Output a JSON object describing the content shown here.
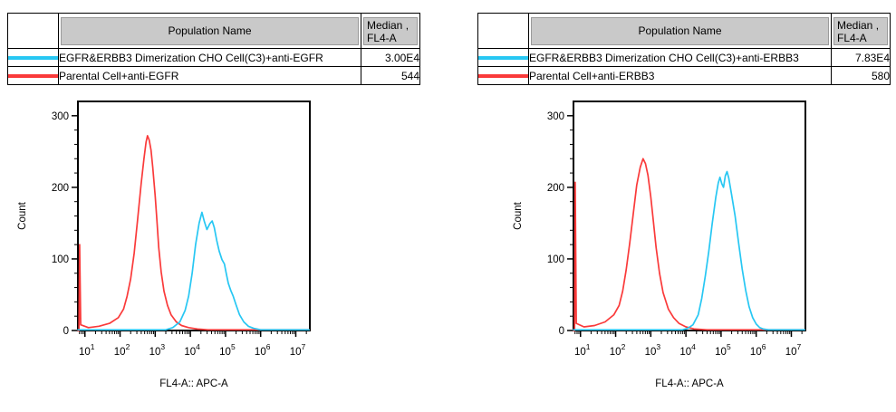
{
  "colors": {
    "cyan": "#27c7f3",
    "red": "#fa3a3a",
    "header_bg": "#c9c9c9",
    "header_border": "#9a9a9a",
    "axis": "#000000"
  },
  "panels": [
    {
      "table": {
        "headers": {
          "population": "Population Name",
          "median_line1": "Median ,",
          "median_line2": "FL4-A"
        },
        "rows": [
          {
            "swatch_color_key": "cyan",
            "name": "EGFR&ERBB3 Dimerization CHO Cell(C3)+anti-EGFR",
            "median": "3.00E4"
          },
          {
            "swatch_color_key": "red",
            "name": "Parental Cell+anti-EGFR",
            "median": "544"
          }
        ]
      }
    },
    {
      "table": {
        "headers": {
          "population": "Population Name",
          "median_line1": "Median ,",
          "median_line2": "FL4-A"
        },
        "rows": [
          {
            "swatch_color_key": "cyan",
            "name": "EGFR&ERBB3 Dimerization CHO Cell(C3)+anti-ERBB3",
            "median": "7.83E4"
          },
          {
            "swatch_color_key": "red",
            "name": "Parental Cell+anti-ERBB3",
            "median": "580"
          }
        ]
      }
    }
  ],
  "chart_data": [
    {
      "type": "line",
      "title": "",
      "xlabel": "FL4-A:: APC-A",
      "ylabel": "Count",
      "x_scale": "log10",
      "xlim_log10": [
        0.8,
        7.4
      ],
      "ylim": [
        0,
        320
      ],
      "yticks": [
        0,
        100,
        200,
        300
      ],
      "ytick_minor_step": 20,
      "xtick_base": "10",
      "xtick_exponents": [
        1,
        2,
        3,
        4,
        5,
        6,
        7
      ],
      "grid": false,
      "legend": "none",
      "series": [
        {
          "name": "Parental Cell+anti-EGFR",
          "color_key": "red",
          "median_fl4a": "544",
          "points_log10x_count": [
            [
              0.8,
              0
            ],
            [
              0.83,
              0
            ],
            [
              0.85,
              120
            ],
            [
              0.88,
              8
            ],
            [
              1.1,
              4
            ],
            [
              1.4,
              6
            ],
            [
              1.7,
              10
            ],
            [
              1.95,
              18
            ],
            [
              2.1,
              30
            ],
            [
              2.2,
              48
            ],
            [
              2.3,
              72
            ],
            [
              2.4,
              108
            ],
            [
              2.5,
              155
            ],
            [
              2.6,
              205
            ],
            [
              2.68,
              240
            ],
            [
              2.74,
              263
            ],
            [
              2.78,
              272
            ],
            [
              2.83,
              266
            ],
            [
              2.88,
              252
            ],
            [
              2.93,
              228
            ],
            [
              3.0,
              188
            ],
            [
              3.05,
              152
            ],
            [
              3.1,
              116
            ],
            [
              3.17,
              82
            ],
            [
              3.25,
              55
            ],
            [
              3.35,
              35
            ],
            [
              3.45,
              22
            ],
            [
              3.6,
              12
            ],
            [
              3.75,
              7
            ],
            [
              3.95,
              4
            ],
            [
              4.2,
              2
            ],
            [
              4.5,
              1
            ],
            [
              7.38,
              1
            ]
          ]
        },
        {
          "name": "EGFR&ERBB3 Dimerization CHO Cell(C3)+anti-EGFR",
          "color_key": "cyan",
          "median_fl4a": "3.00E4",
          "points_log10x_count": [
            [
              0.8,
              1
            ],
            [
              3.3,
              1
            ],
            [
              3.5,
              4
            ],
            [
              3.7,
              12
            ],
            [
              3.85,
              28
            ],
            [
              3.95,
              48
            ],
            [
              4.05,
              80
            ],
            [
              4.15,
              120
            ],
            [
              4.25,
              150
            ],
            [
              4.33,
              165
            ],
            [
              4.4,
              152
            ],
            [
              4.47,
              141
            ],
            [
              4.55,
              149
            ],
            [
              4.62,
              153
            ],
            [
              4.68,
              144
            ],
            [
              4.75,
              126
            ],
            [
              4.82,
              111
            ],
            [
              4.9,
              99
            ],
            [
              4.97,
              93
            ],
            [
              5.02,
              80
            ],
            [
              5.08,
              66
            ],
            [
              5.15,
              56
            ],
            [
              5.22,
              48
            ],
            [
              5.3,
              36
            ],
            [
              5.4,
              22
            ],
            [
              5.52,
              12
            ],
            [
              5.65,
              6
            ],
            [
              5.8,
              3
            ],
            [
              6.0,
              1
            ],
            [
              7.38,
              1
            ]
          ]
        }
      ]
    },
    {
      "type": "line",
      "title": "",
      "xlabel": "FL4-A:: APC-A",
      "ylabel": "Count",
      "x_scale": "log10",
      "xlim_log10": [
        0.8,
        7.4
      ],
      "ylim": [
        0,
        320
      ],
      "yticks": [
        0,
        100,
        200,
        300
      ],
      "ytick_minor_step": 20,
      "xtick_base": "10",
      "xtick_exponents": [
        1,
        2,
        3,
        4,
        5,
        6,
        7
      ],
      "grid": false,
      "legend": "none",
      "series": [
        {
          "name": "Parental Cell+anti-ERBB3",
          "color_key": "red",
          "median_fl4a": "580",
          "points_log10x_count": [
            [
              0.8,
              0
            ],
            [
              0.83,
              0
            ],
            [
              0.85,
              207
            ],
            [
              0.88,
              10
            ],
            [
              1.1,
              5
            ],
            [
              1.4,
              7
            ],
            [
              1.7,
              12
            ],
            [
              1.95,
              22
            ],
            [
              2.1,
              35
            ],
            [
              2.2,
              55
            ],
            [
              2.3,
              85
            ],
            [
              2.4,
              122
            ],
            [
              2.5,
              162
            ],
            [
              2.6,
              203
            ],
            [
              2.7,
              228
            ],
            [
              2.78,
              240
            ],
            [
              2.85,
              233
            ],
            [
              2.92,
              217
            ],
            [
              3.0,
              187
            ],
            [
              3.08,
              150
            ],
            [
              3.15,
              116
            ],
            [
              3.25,
              80
            ],
            [
              3.35,
              53
            ],
            [
              3.5,
              30
            ],
            [
              3.65,
              18
            ],
            [
              3.8,
              10
            ],
            [
              4.0,
              5
            ],
            [
              4.25,
              2
            ],
            [
              4.6,
              1
            ],
            [
              7.38,
              1
            ]
          ]
        },
        {
          "name": "EGFR&ERBB3 Dimerization CHO Cell(C3)+anti-ERBB3",
          "color_key": "cyan",
          "median_fl4a": "7.83E4",
          "points_log10x_count": [
            [
              0.8,
              1
            ],
            [
              3.9,
              1
            ],
            [
              4.05,
              3
            ],
            [
              4.2,
              8
            ],
            [
              4.35,
              22
            ],
            [
              4.45,
              45
            ],
            [
              4.55,
              76
            ],
            [
              4.65,
              110
            ],
            [
              4.75,
              150
            ],
            [
              4.85,
              186
            ],
            [
              4.92,
              206
            ],
            [
              4.97,
              214
            ],
            [
              5.02,
              205
            ],
            [
              5.07,
              200
            ],
            [
              5.12,
              216
            ],
            [
              5.17,
              222
            ],
            [
              5.22,
              213
            ],
            [
              5.3,
              190
            ],
            [
              5.4,
              160
            ],
            [
              5.5,
              122
            ],
            [
              5.6,
              86
            ],
            [
              5.7,
              56
            ],
            [
              5.8,
              33
            ],
            [
              5.9,
              18
            ],
            [
              6.0,
              9
            ],
            [
              6.1,
              4
            ],
            [
              6.2,
              2
            ],
            [
              6.35,
              1
            ],
            [
              7.38,
              1
            ]
          ]
        }
      ]
    }
  ]
}
